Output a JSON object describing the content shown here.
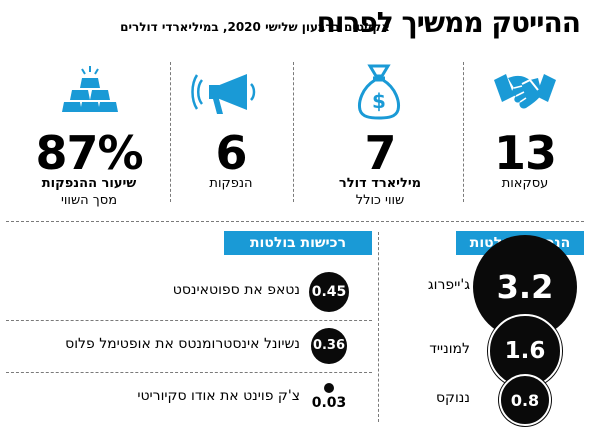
{
  "header": {
    "title": "ההייטק ממשיך לפרוח",
    "subtitle": "אקזיטים ברבעון שלישי 2020, במיליארדי דולרים"
  },
  "stats": [
    {
      "value": "13",
      "label": "עסקאות",
      "icon": "handshake-icon"
    },
    {
      "value": "7",
      "label": "מיליארד דולר",
      "sublabel": "שווי כולל",
      "icon": "money-bag-icon"
    },
    {
      "value": "6",
      "label": "הנפקות",
      "icon": "megaphone-icon"
    },
    {
      "value": "87%",
      "label": "שיעור ההנפקות",
      "sublabel": "מסך השווי",
      "icon": "gold-bars-icon"
    }
  ],
  "colors": {
    "accent": "#1a9ad6",
    "bubble": "#0a0a0a",
    "text": "#000000"
  },
  "chart_data": [
    {
      "type": "bubble",
      "title": "הנפקות בולטות",
      "unit": "מיליארדי דולרים",
      "categories": [
        "ג'ייפרוג",
        "למונייד",
        "ננוקס"
      ],
      "values": [
        3.2,
        1.6,
        0.8
      ],
      "labels": [
        "3.2",
        "1.6",
        "0.8"
      ]
    },
    {
      "type": "bubble",
      "title": "רכישות בולטות",
      "unit": "מיליארדי דולרים",
      "categories": [
        "נטאפ את ספוטאינסט",
        "נשיונל אינסטרומנטס את אופטימל פלוס",
        "צ'ק פוינט את אודו סקיוריטי"
      ],
      "values": [
        0.45,
        0.36,
        0.03
      ],
      "labels": [
        "0.45",
        "0.36",
        "0.03"
      ]
    }
  ]
}
